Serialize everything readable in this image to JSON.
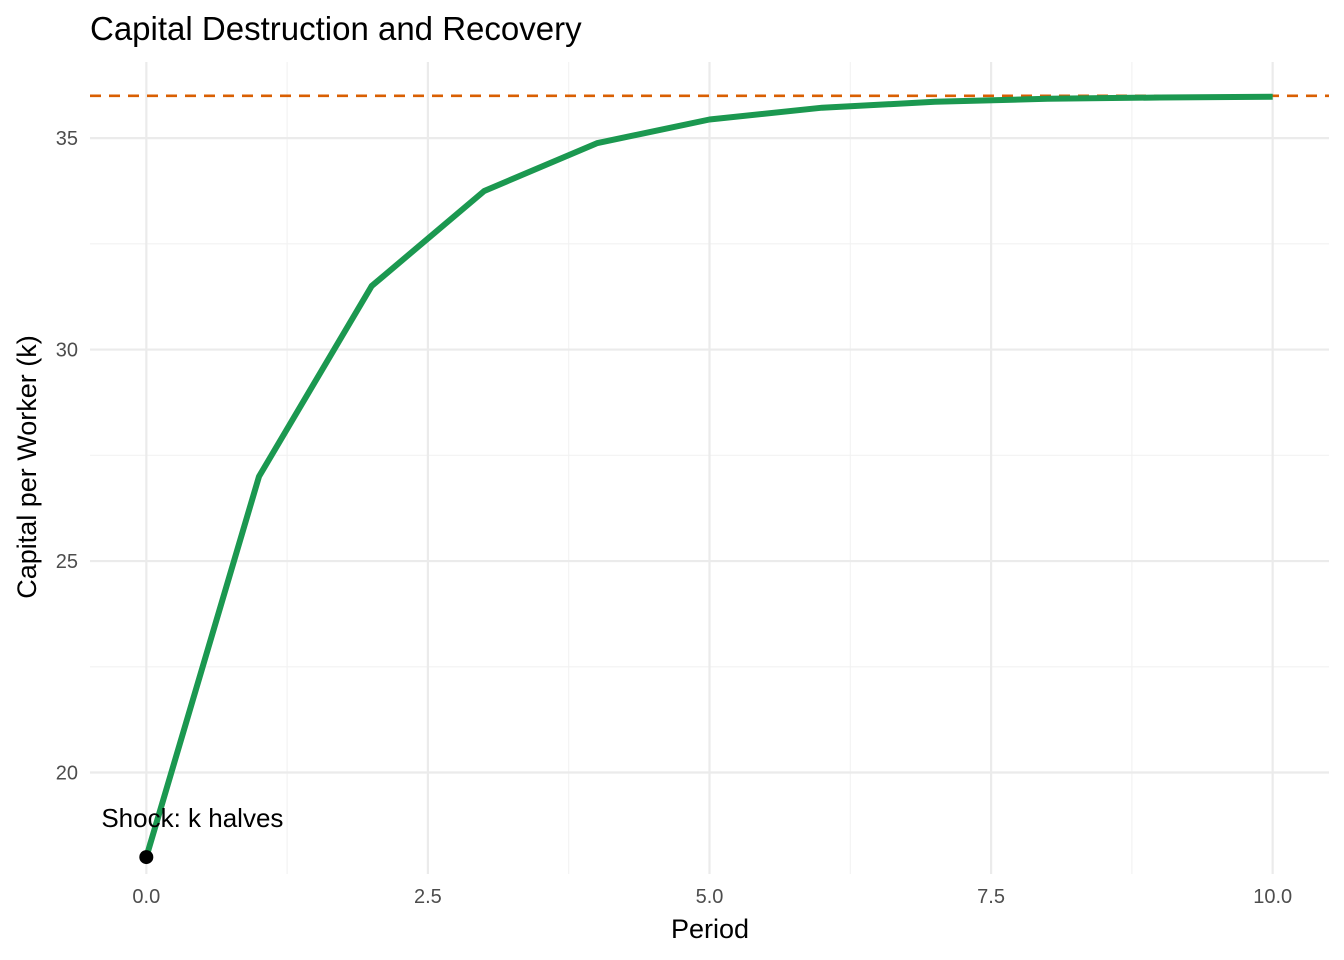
{
  "chart_data": {
    "type": "line",
    "title": "Capital Destruction and Recovery",
    "xlabel": "Period",
    "ylabel": "Capital per Worker (k)",
    "xlim": [
      -0.5,
      10.5
    ],
    "ylim": [
      17.6,
      36.8
    ],
    "x_ticks": [
      0,
      2.5,
      5,
      7.5,
      10
    ],
    "x_tick_labels": [
      "0.0",
      "2.5",
      "5.0",
      "7.5",
      "10.0"
    ],
    "y_ticks": [
      20,
      25,
      30,
      35
    ],
    "y_tick_labels": [
      "20",
      "25",
      "30",
      "35"
    ],
    "grid": true,
    "series": [
      {
        "x": [
          0,
          1,
          2,
          3,
          4,
          5,
          6,
          7,
          8,
          9,
          10
        ],
        "values": [
          18.0,
          27.0,
          31.5,
          33.75,
          34.88,
          35.44,
          35.72,
          35.86,
          35.93,
          35.96,
          35.98
        ],
        "color": "#1b9850"
      }
    ],
    "reference_line": {
      "y": 36.0,
      "style": "dashed",
      "color": "#d95f02"
    },
    "annotations": [
      {
        "x": 0,
        "y": 18.0,
        "text": "Shock: k halves",
        "marker_color": "#000000"
      }
    ]
  }
}
